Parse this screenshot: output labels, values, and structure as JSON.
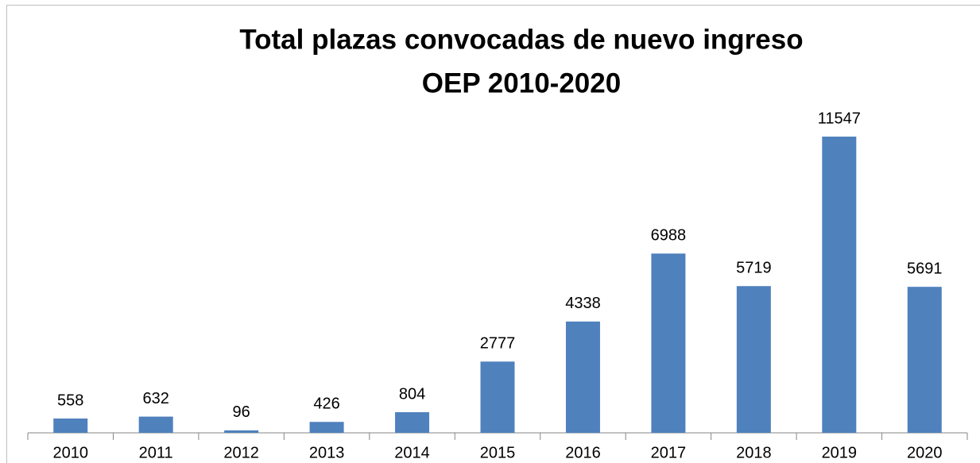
{
  "chart_data": {
    "type": "bar",
    "title": [
      "Total plazas convocadas de nuevo ingreso",
      "OEP 2010-2020"
    ],
    "categories": [
      "2010",
      "2011",
      "2012",
      "2013",
      "2014",
      "2015",
      "2016",
      "2017",
      "2018",
      "2019",
      "2020"
    ],
    "values": [
      558,
      632,
      96,
      426,
      804,
      2777,
      4338,
      6988,
      5719,
      11547,
      5691
    ],
    "color": "#4f81bd"
  }
}
